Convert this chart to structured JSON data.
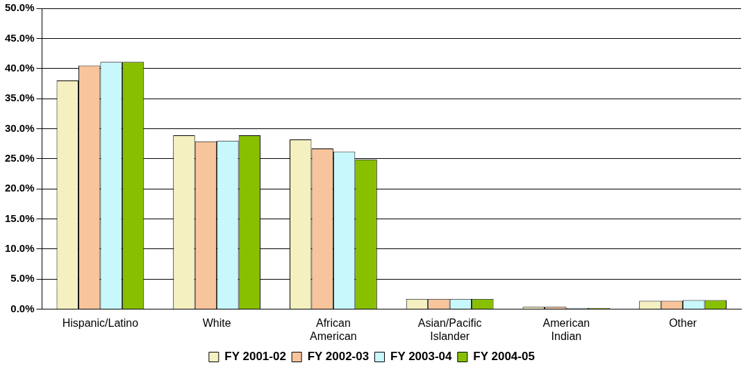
{
  "chart_data": {
    "type": "bar",
    "categories": [
      "Hispanic/Latino",
      "White",
      "African American",
      "Asian/Pacific Islander",
      "American Indian",
      "Other"
    ],
    "series": [
      {
        "name": "FY 2001-02",
        "color": "#f4f0c0",
        "values": [
          38.0,
          28.9,
          28.2,
          1.7,
          0.4,
          1.4
        ]
      },
      {
        "name": "FY 2002-03",
        "color": "#f8c49c",
        "values": [
          40.5,
          27.9,
          26.7,
          1.7,
          0.4,
          1.4
        ]
      },
      {
        "name": "FY 2003-04",
        "color": "#c8f8fc",
        "values": [
          41.1,
          28.0,
          26.2,
          1.7,
          0.2,
          1.5
        ]
      },
      {
        "name": "FY 2004-05",
        "color": "#88c000",
        "values": [
          41.1,
          28.9,
          24.9,
          1.7,
          0.2,
          1.5
        ]
      }
    ],
    "ylim": [
      0,
      50
    ],
    "yticks": [
      {
        "value": 0,
        "label": "0.0%"
      },
      {
        "value": 5,
        "label": "5.0%"
      },
      {
        "value": 10,
        "label": "10.0%"
      },
      {
        "value": 15,
        "label": "15.0%"
      },
      {
        "value": 20,
        "label": "20.0%"
      },
      {
        "value": 25,
        "label": "25.0%"
      },
      {
        "value": 30,
        "label": "30.0%"
      },
      {
        "value": 35,
        "label": "35.0%"
      },
      {
        "value": 40,
        "label": "40.0%"
      },
      {
        "value": 45,
        "label": "45.0%"
      },
      {
        "value": 50,
        "label": "50.0%"
      }
    ],
    "grid": "y",
    "legend": "bottom"
  }
}
